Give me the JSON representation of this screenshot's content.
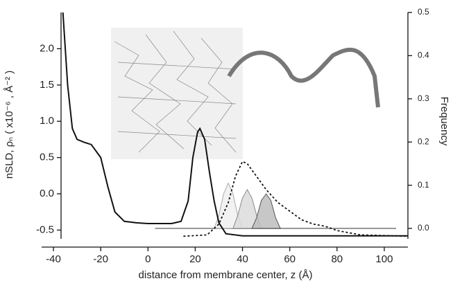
{
  "chart_data": {
    "type": "line",
    "x_label": "distance from membrane center, z (Å)",
    "y_label": "nSLD, ρₙ ( x10⁻⁶ , Å⁻² )",
    "y2_label": "Frequency",
    "xlim": [
      -45,
      110
    ],
    "xticks": [
      -40,
      -20,
      0,
      20,
      40,
      60,
      80,
      100
    ],
    "ylim": [
      -0.62,
      2.5
    ],
    "yticks": [
      {
        "value": -0.5,
        "label": "-0.5"
      },
      {
        "value": 0,
        "label": "0.0"
      },
      0.5,
      {
        "value": 1,
        "label": "1.0"
      },
      1.5,
      {
        "value": 2,
        "label": "2.0"
      }
    ],
    "y2lim": [
      -0.024,
      0.5
    ],
    "y2ticks": [
      {
        "value": 0,
        "label": "0.0"
      },
      0.1,
      0.2,
      0.3,
      0.4,
      0.5
    ],
    "series": [
      {
        "color": "#999999",
        "x": [
          3,
          105
        ],
        "values": [
          0,
          0
        ],
        "axis": "y2"
      },
      {
        "color": "#aaaaaa",
        "fill": "#f0f0f0",
        "axis": "y2",
        "x": [
          28,
          30,
          32,
          34,
          36,
          38,
          40
        ],
        "values": [
          0,
          0.03,
          0.08,
          0.105,
          0.08,
          0.03,
          0
        ]
      },
      {
        "color": "#888888",
        "fill": "#dcdcdc",
        "axis": "y2",
        "x": [
          36,
          38,
          40,
          42,
          44,
          46,
          48
        ],
        "values": [
          0,
          0.03,
          0.07,
          0.09,
          0.07,
          0.03,
          0
        ]
      },
      {
        "color": "#555555",
        "fill": "#bdbdbd",
        "axis": "y2",
        "x": [
          44,
          46,
          48,
          50,
          52,
          54,
          56
        ],
        "values": [
          0,
          0.025,
          0.065,
          0.08,
          0.065,
          0.025,
          0
        ]
      },
      {
        "color": "#111111",
        "x": [
          -36,
          -34,
          -32,
          -30,
          -27,
          -24,
          -20,
          -17,
          -14,
          -10,
          -5,
          0,
          10,
          14,
          17,
          19,
          21,
          22,
          24,
          26,
          28,
          30,
          33,
          40,
          110
        ],
        "values": [
          2.5,
          1.5,
          0.9,
          0.75,
          0.71,
          0.68,
          0.5,
          0.1,
          -0.25,
          -0.38,
          -0.4,
          -0.41,
          -0.41,
          -0.38,
          -0.1,
          0.5,
          0.85,
          0.9,
          0.75,
          0.3,
          -0.1,
          -0.4,
          -0.55,
          -0.58,
          -0.58
        ]
      },
      {
        "color": "#111111",
        "dash": true,
        "axis": "y2",
        "x": [
          15,
          25,
          30,
          34,
          37,
          40,
          42,
          46,
          50,
          55,
          60,
          65,
          70,
          75,
          80,
          90,
          110
        ],
        "values": [
          -0.018,
          -0.015,
          0.01,
          0.06,
          0.12,
          0.155,
          0.15,
          0.12,
          0.09,
          0.06,
          0.04,
          0.02,
          0.01,
          0.005,
          -0.005,
          -0.015,
          -0.018
        ]
      }
    ]
  }
}
